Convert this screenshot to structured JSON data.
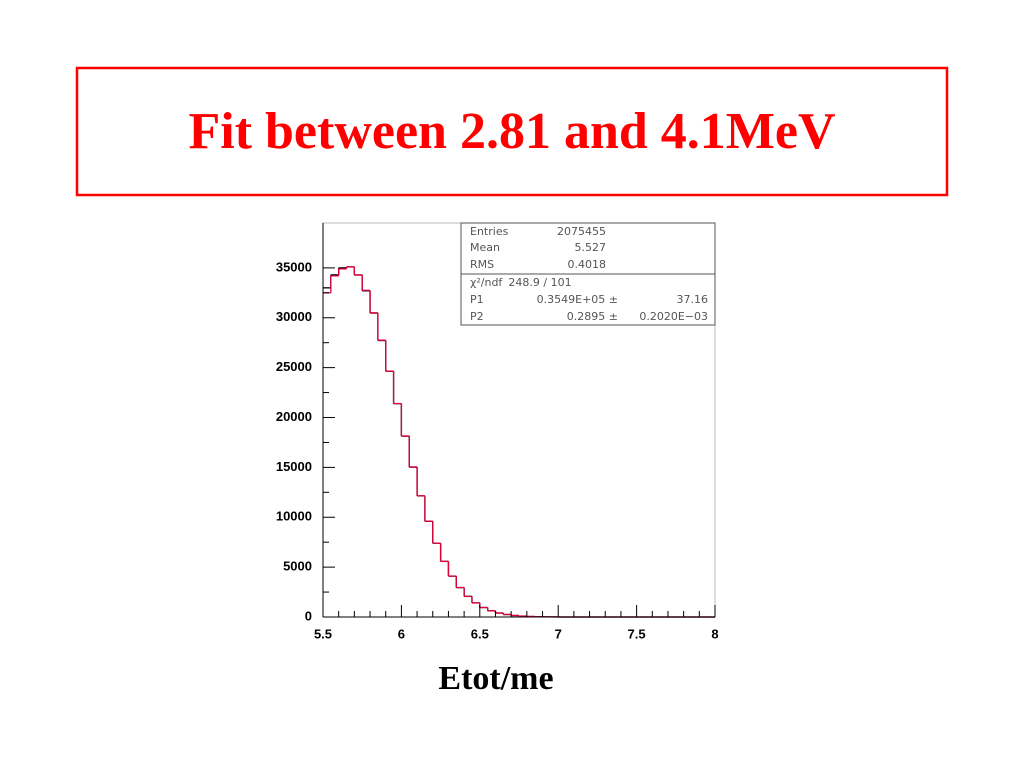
{
  "chart_data": {
    "type": "histogram",
    "title": "Fit between 2.81 and 4.1MeV",
    "x_label": "Etot/me",
    "bins": [
      5.5,
      5.55,
      5.6,
      5.65,
      5.7,
      5.75,
      5.8,
      5.85,
      5.9,
      5.95,
      6,
      6.05,
      6.1,
      6.15,
      6.2,
      6.25,
      6.3,
      6.35,
      6.4,
      6.45,
      6.5,
      6.55,
      6.6,
      6.65,
      6.7,
      6.75,
      6.8,
      6.85,
      6.9,
      6.95,
      7,
      7.05,
      7.1,
      7.15,
      7.2,
      7.25,
      7.3,
      7.35,
      7.4,
      7.45,
      7.5,
      7.55,
      7.6,
      7.65,
      7.7,
      7.75,
      7.8,
      7.85,
      7.9,
      7.95,
      8
    ],
    "series": [
      {
        "color": "#000000",
        "values": [
          33000,
          34300,
          35000,
          35100,
          34280,
          32700,
          30470,
          27720,
          24640,
          21390,
          18130,
          15020,
          12140,
          9590,
          7400,
          5580,
          4100,
          2950,
          2070,
          1420,
          950,
          620,
          400,
          250,
          150,
          90,
          50,
          30,
          20,
          10,
          0,
          0,
          0,
          0,
          0,
          0,
          0,
          0,
          0,
          0,
          0,
          0,
          0,
          0,
          0,
          0,
          0,
          0,
          0,
          0
        ]
      },
      {
        "color": "#e0003c",
        "values": [
          32500,
          34200,
          34900,
          35100,
          34300,
          32750,
          30500,
          27750,
          24650,
          21400,
          18150,
          15050,
          12150,
          9600,
          7400,
          5570,
          4100,
          2950,
          2060,
          1410,
          950,
          620,
          400,
          250,
          150,
          90,
          50,
          30,
          20,
          10,
          0,
          0,
          0,
          0,
          0,
          0,
          0,
          0,
          0,
          0,
          0,
          0,
          0,
          0,
          0,
          0,
          0,
          0,
          0,
          0
        ]
      }
    ],
    "xlim": [
      5.5,
      8
    ],
    "xticks": [
      5.5,
      6,
      6.5,
      7,
      7.5,
      8
    ],
    "ylim": [
      0,
      39500
    ],
    "yticks": [
      0,
      5000,
      10000,
      15000,
      20000,
      25000,
      30000,
      35000
    ],
    "stats": [
      [
        "Entries",
        "2075455"
      ],
      [
        "Mean",
        "5.527"
      ],
      [
        "RMS",
        "0.4018"
      ],
      [
        "χ²/ndf",
        "248.9  /  101"
      ],
      [
        "P1",
        "0.3549E+05 ±",
        "37.16"
      ],
      [
        "P2",
        "0.2895 ±",
        "0.2020E−03"
      ]
    ]
  }
}
